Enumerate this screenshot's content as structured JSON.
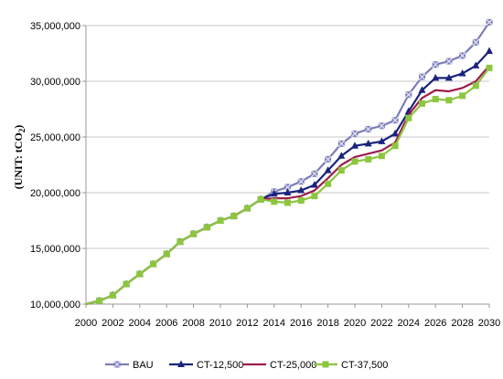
{
  "chart_data": {
    "type": "line",
    "title": "",
    "xlabel": "",
    "ylabel": "(UNIT: tCO",
    "ylabel_sub": "2",
    "ylabel_close": ")",
    "ylim": [
      10000000,
      35000000
    ],
    "yticks": [
      10000000,
      15000000,
      20000000,
      25000000,
      30000000,
      35000000
    ],
    "ytick_labels": [
      "10,000,000",
      "15,000,000",
      "20,000,000",
      "25,000,000",
      "30,000,000",
      "35,000,000"
    ],
    "xlim": [
      2000,
      2030
    ],
    "xticks": [
      2000,
      2002,
      2004,
      2006,
      2008,
      2010,
      2012,
      2014,
      2016,
      2018,
      2020,
      2022,
      2024,
      2026,
      2028,
      2030
    ],
    "xtick_labels": [
      "2000",
      "2002",
      "2004",
      "2006",
      "2008",
      "2010",
      "2012",
      "2014",
      "2016",
      "2018",
      "2020",
      "2022",
      "2024",
      "2026",
      "2028",
      "2030"
    ],
    "grid": "horizontal",
    "legend_position": "bottom",
    "x": [
      2000,
      2001,
      2002,
      2003,
      2004,
      2005,
      2006,
      2007,
      2008,
      2009,
      2010,
      2011,
      2012,
      2013,
      2014,
      2015,
      2016,
      2017,
      2018,
      2019,
      2020,
      2021,
      2022,
      2023,
      2024,
      2025,
      2026,
      2027,
      2028,
      2029,
      2030
    ],
    "series": [
      {
        "name": "BAU",
        "color": "#7b7db8",
        "marker": "x-square",
        "values": [
          10000000,
          10300000,
          10800000,
          11800000,
          12700000,
          13600000,
          14500000,
          15600000,
          16300000,
          16900000,
          17500000,
          17900000,
          18600000,
          19400000,
          20100000,
          20500000,
          21000000,
          21700000,
          23000000,
          24400000,
          25300000,
          25700000,
          26000000,
          26500000,
          28800000,
          30400000,
          31500000,
          31800000,
          32300000,
          33500000,
          35300000
        ]
      },
      {
        "name": "CT-12,500",
        "color": "#1a237e",
        "marker": "triangle",
        "values": [
          10000000,
          10300000,
          10800000,
          11800000,
          12700000,
          13600000,
          14500000,
          15600000,
          16300000,
          16900000,
          17500000,
          17900000,
          18600000,
          19400000,
          19900000,
          20000000,
          20200000,
          20700000,
          22000000,
          23300000,
          24200000,
          24400000,
          24600000,
          25300000,
          27300000,
          29200000,
          30300000,
          30300000,
          30700000,
          31400000,
          32700000
        ]
      },
      {
        "name": "CT-25,000",
        "color": "#9e1b4b",
        "marker": "none",
        "values": [
          10000000,
          10300000,
          10800000,
          11800000,
          12700000,
          13600000,
          14500000,
          15600000,
          16300000,
          16900000,
          17500000,
          17900000,
          18600000,
          19400000,
          19500000,
          19500000,
          19700000,
          20200000,
          21300000,
          22500000,
          23200000,
          23500000,
          23800000,
          24500000,
          27000000,
          28500000,
          29200000,
          29100000,
          29400000,
          30000000,
          31400000
        ]
      },
      {
        "name": "CT-37,500",
        "color": "#8cc63f",
        "marker": "square",
        "values": [
          10000000,
          10300000,
          10800000,
          11800000,
          12700000,
          13600000,
          14500000,
          15600000,
          16300000,
          16900000,
          17500000,
          17900000,
          18600000,
          19400000,
          19200000,
          19100000,
          19300000,
          19700000,
          20800000,
          22000000,
          22800000,
          23000000,
          23300000,
          24200000,
          26700000,
          28000000,
          28400000,
          28300000,
          28700000,
          29600000,
          31200000
        ]
      }
    ]
  }
}
